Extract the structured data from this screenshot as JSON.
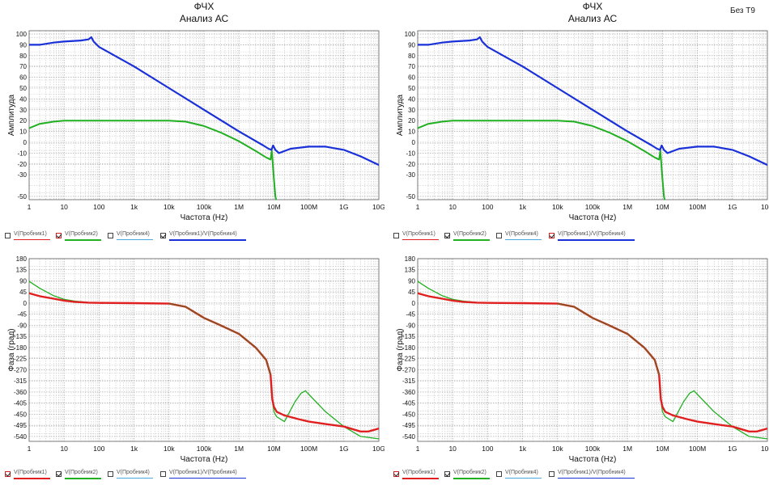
{
  "corner_label": "Без T9",
  "x_tick_labels": [
    "1",
    "10",
    "100",
    "1k",
    "10k",
    "100k",
    "1M",
    "10M",
    "100M",
    "1G",
    "10G"
  ],
  "probes": [
    {
      "id": "p1",
      "label": "V(Пробник1)",
      "color": "#e02020"
    },
    {
      "id": "p2",
      "label": "V(Пробник2)",
      "color": "#22b022"
    },
    {
      "id": "p4",
      "label": "V(Пробник4)",
      "color": "#4aa8e0"
    },
    {
      "id": "ratio",
      "label": "V(Пробник1)/V(Пробник4)",
      "color": "#1a30d8"
    }
  ],
  "panels": [
    {
      "amplitude_legend_checked": [
        "p2",
        "ratio"
      ],
      "amplitude_legend_flag": "p2",
      "phase_legend_checked": [
        "p1",
        "p2"
      ],
      "phase_legend_flag": "p1"
    },
    {
      "amplitude_legend_checked": [
        "p2",
        "ratio"
      ],
      "amplitude_legend_flag": "ratio",
      "phase_legend_checked": [
        "p1",
        "p2"
      ],
      "phase_legend_flag": "p1"
    }
  ],
  "chart_data": [
    {
      "type": "line",
      "title": "ФЧХ",
      "subtitle": "Анализ АС",
      "xlabel": "Частота (Hz)",
      "ylabel": "Амплитуда",
      "xscale": "log",
      "xlim": [
        1,
        10000000000
      ],
      "ylim": [
        -53,
        103
      ],
      "yticks": [
        100,
        90,
        80,
        70,
        60,
        50,
        40,
        30,
        20,
        10,
        0,
        -10,
        -20,
        -30,
        -50
      ],
      "grid": true,
      "series": [
        {
          "name": "V(Пробник2)",
          "color": "#22b022",
          "width": 2,
          "x": [
            1,
            2,
            5,
            10,
            100,
            1000,
            10000,
            30000,
            100000,
            300000,
            1000000,
            3000000,
            6000000,
            8000000,
            8700000,
            9000000,
            10000000,
            11000000,
            12000000
          ],
          "y": [
            13,
            17,
            19,
            20,
            20,
            20,
            20,
            19,
            15,
            9,
            1,
            -8,
            -14,
            -16,
            -8,
            -14,
            -34,
            -50,
            -55
          ]
        },
        {
          "name": "V(Пробник1)/V(Пробник4)",
          "color": "#1a30d8",
          "width": 2.2,
          "x": [
            1,
            2,
            5,
            10,
            30,
            50,
            60,
            70,
            100,
            1000,
            10000,
            100000,
            1000000,
            5000000,
            7000000,
            8500000,
            9500000,
            11000000,
            14000000,
            30000000,
            100000000,
            300000000,
            1000000000,
            3000000000,
            10000000000
          ],
          "y": [
            90,
            90,
            92,
            93,
            94,
            95,
            97,
            93,
            88,
            70,
            50,
            30,
            10,
            -3,
            -6,
            -7,
            -3,
            -7,
            -10,
            -6,
            -4,
            -4,
            -7,
            -13,
            -21
          ]
        }
      ]
    },
    {
      "type": "line",
      "xlabel": "Частота (Hz)",
      "ylabel": "Фаза (град)",
      "xscale": "log",
      "xlim": [
        1,
        10000000000
      ],
      "ylim": [
        -560,
        180
      ],
      "yticks": [
        180,
        135,
        90,
        45,
        0,
        -45,
        -90,
        -135,
        -180,
        -225,
        -270,
        -315,
        -360,
        -405,
        -450,
        -495,
        -540
      ],
      "grid": true,
      "series": [
        {
          "name": "V(Пробник2)",
          "color": "#22b022",
          "width": 1.3,
          "x": [
            1,
            2,
            5,
            10,
            20,
            50,
            100,
            1000,
            10000,
            30000,
            100000,
            300000,
            1000000,
            3000000,
            6000000,
            8000000,
            9000000,
            10000000,
            12000000,
            20000000,
            40000000,
            60000000,
            80000000,
            100000000,
            300000000,
            1000000000,
            3000000000,
            10000000000
          ],
          "y": [
            88,
            60,
            30,
            15,
            8,
            3,
            1,
            0,
            -2,
            -15,
            -60,
            -90,
            -125,
            -180,
            -230,
            -290,
            -390,
            -440,
            -460,
            -480,
            -400,
            -365,
            -355,
            -370,
            -440,
            -500,
            -540,
            -550
          ]
        },
        {
          "name": "V(Пробник1)",
          "color": "#e02020",
          "width": 2.4,
          "x": [
            1,
            2,
            5,
            10,
            20,
            50,
            100,
            1000,
            10000,
            30000,
            100000,
            300000,
            1000000,
            3000000,
            6000000,
            8000000,
            9000000,
            10000000,
            12000000,
            20000000,
            50000000,
            100000000,
            300000000,
            1000000000,
            3000000000,
            5000000000,
            10000000000
          ],
          "y": [
            40,
            28,
            18,
            10,
            5,
            2,
            1,
            0,
            -2,
            -15,
            -60,
            -90,
            -125,
            -180,
            -230,
            -290,
            -390,
            -420,
            -440,
            -455,
            -470,
            -480,
            -490,
            -500,
            -520,
            -520,
            -508
          ]
        },
        {
          "name": "V(Пробник2)",
          "color": "#7a5a20",
          "width": 1.4,
          "x": [
            10000,
            30000,
            100000,
            300000,
            1000000,
            3000000,
            6000000,
            8000000
          ],
          "y": [
            -2,
            -15,
            -60,
            -90,
            -125,
            -180,
            -230,
            -290
          ]
        }
      ]
    }
  ]
}
